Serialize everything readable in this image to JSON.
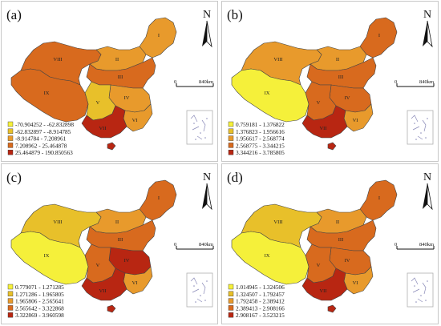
{
  "figure": {
    "panels": [
      {
        "id": "a",
        "label": "(a)",
        "north": "N",
        "scale_zero": "0",
        "scale_dist": "840km",
        "legend": [
          {
            "text": "-70.904252 - -62.832898",
            "color": "#f5f03a"
          },
          {
            "text": "-62.832897 - -8.914785",
            "color": "#e8c02a"
          },
          {
            "text": "-8.914784 - 7.208961",
            "color": "#e89a2c"
          },
          {
            "text": "7.208962 - 25.464878",
            "color": "#d86a1e"
          },
          {
            "text": "25.464879 - 190.850563",
            "color": "#b82612"
          }
        ],
        "region_colors": {
          "I": "#e89a2c",
          "II": "#e89a2c",
          "III": "#d86a1e",
          "IV": "#e89a2c",
          "V": "#e8c02a",
          "VI": "#e89a2c",
          "VII": "#b82612",
          "VIII": "#d86a1e",
          "IX": "#d86a1e"
        },
        "regions": [
          "I",
          "II",
          "III",
          "IV",
          "V",
          "VI",
          "VII",
          "VIII",
          "IX"
        ]
      },
      {
        "id": "b",
        "label": "(b)",
        "north": "N",
        "scale_zero": "0",
        "scale_dist": "840km",
        "legend": [
          {
            "text": "0.759181 - 1.376822",
            "color": "#f5f03a"
          },
          {
            "text": "1.376823 - 1.956616",
            "color": "#e8c02a"
          },
          {
            "text": "1.956617 - 2.568774",
            "color": "#e89a2c"
          },
          {
            "text": "2.568775 - 3.344215",
            "color": "#d86a1e"
          },
          {
            "text": "3.344216 - 3.785805",
            "color": "#b82612"
          }
        ],
        "region_colors": {
          "I": "#d86a1e",
          "II": "#e89a2c",
          "III": "#d86a1e",
          "IV": "#d86a1e",
          "V": "#d86a1e",
          "VI": "#e89a2c",
          "VII": "#b82612",
          "VIII": "#e89a2c",
          "IX": "#f5f03a"
        },
        "regions": [
          "I",
          "II",
          "III",
          "IV",
          "V",
          "VI",
          "VII",
          "VIII",
          "IX"
        ]
      },
      {
        "id": "c",
        "label": "(c)",
        "north": "N",
        "scale_zero": "0",
        "scale_dist": "840km",
        "legend": [
          {
            "text": "0.779071 - 1.271285",
            "color": "#f5f03a"
          },
          {
            "text": "1.271286 - 1.965805",
            "color": "#e8c02a"
          },
          {
            "text": "1.965806 - 2.565641",
            "color": "#e89a2c"
          },
          {
            "text": "2.565642 - 3.322868",
            "color": "#d86a1e"
          },
          {
            "text": "3.322869 - 3.960598",
            "color": "#b82612"
          }
        ],
        "region_colors": {
          "I": "#d86a1e",
          "II": "#e89a2c",
          "III": "#d86a1e",
          "IV": "#b82612",
          "V": "#d86a1e",
          "VI": "#e89a2c",
          "VII": "#b82612",
          "VIII": "#e8c02a",
          "IX": "#f5f03a"
        },
        "regions": [
          "I",
          "II",
          "III",
          "IV",
          "V",
          "VI",
          "VII",
          "VIII",
          "IX"
        ]
      },
      {
        "id": "d",
        "label": "(d)",
        "north": "N",
        "scale_zero": "0",
        "scale_dist": "840km",
        "legend": [
          {
            "text": "1.014945 - 1.324506",
            "color": "#f5f03a"
          },
          {
            "text": "1.324507 - 1.792457",
            "color": "#e8c02a"
          },
          {
            "text": "1.792458 - 2.389412",
            "color": "#e89a2c"
          },
          {
            "text": "2.389413 - 2.908166",
            "color": "#d86a1e"
          },
          {
            "text": "2.908167 - 3.523215",
            "color": "#b82612"
          }
        ],
        "region_colors": {
          "I": "#d86a1e",
          "II": "#e89a2c",
          "III": "#d86a1e",
          "IV": "#d86a1e",
          "V": "#d86a1e",
          "VI": "#e89a2c",
          "VII": "#b82612",
          "VIII": "#e8c02a",
          "IX": "#f5f03a"
        },
        "regions": [
          "I",
          "II",
          "III",
          "IV",
          "V",
          "VI",
          "VII",
          "VIII",
          "IX"
        ]
      }
    ]
  }
}
